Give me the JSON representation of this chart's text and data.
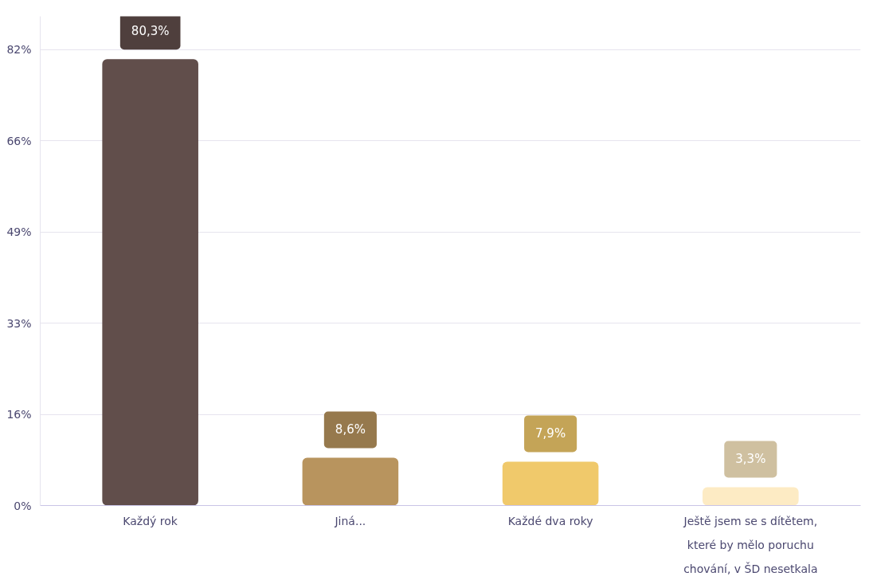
{
  "chart_data": {
    "type": "bar",
    "categories": [
      "Každý rok",
      "Jiná...",
      "Každé dva roky",
      "Ještě jsem se s dítětem, které by mělo poruchu chování, v ŠD nesetkala"
    ],
    "values": [
      80.3,
      8.6,
      7.9,
      3.3
    ],
    "colors": [
      "#614e4b",
      "#b8945e",
      "#f0c96b",
      "#fdebc4"
    ],
    "value_labels": [
      "80,3%",
      "8,6%",
      "7,9%",
      "3,3%"
    ],
    "ylim": [
      0,
      88
    ],
    "yticks": [
      {
        "value": 0,
        "label": "0%"
      },
      {
        "value": 16.4,
        "label": "16%"
      },
      {
        "value": 32.8,
        "label": "33%"
      },
      {
        "value": 49.2,
        "label": "49%"
      },
      {
        "value": 65.6,
        "label": "66%"
      },
      {
        "value": 82,
        "label": "82%"
      }
    ],
    "grid": "y"
  }
}
